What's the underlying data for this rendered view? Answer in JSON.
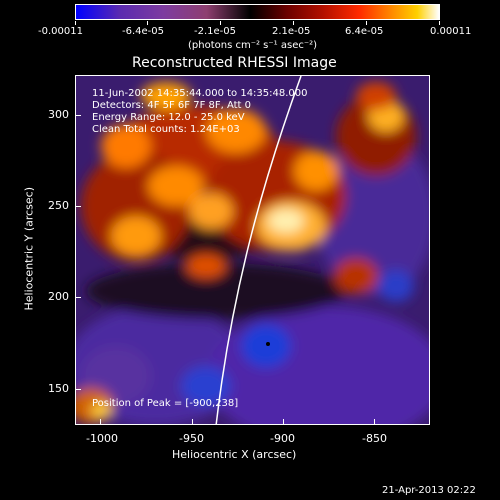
{
  "colorbar": {
    "labels": [
      "-0.00011",
      "-6.4e-05",
      "-2.1e-05",
      "2.1e-05",
      "6.4e-05",
      "0.00011"
    ],
    "unit_text": "(photons cm⁻² s⁻¹ asec⁻²)"
  },
  "plot": {
    "title": "Reconstructed RHESSI Image",
    "info": {
      "time_range": "11-Jun-2002 14:35:44.000 to 14:35:48.000",
      "detectors": "Detectors: 4F 5F 6F 7F 8F, Att 0",
      "energy": "Energy Range: 12.0 - 25.0 keV",
      "algorithm": "Clean     Total counts: 1.24E+03"
    },
    "peak_text": "Position of Peak = [-900,238]",
    "x_axis": {
      "label": "Heliocentric X (arcsec)",
      "ticks": [
        "-1000",
        "-950",
        "-900",
        "-850"
      ]
    },
    "y_axis": {
      "label": "Heliocentric Y (arcsec)",
      "ticks": [
        "300",
        "250",
        "200",
        "150"
      ]
    }
  },
  "footer": {
    "date": "21-Apr-2013 02:22"
  }
}
